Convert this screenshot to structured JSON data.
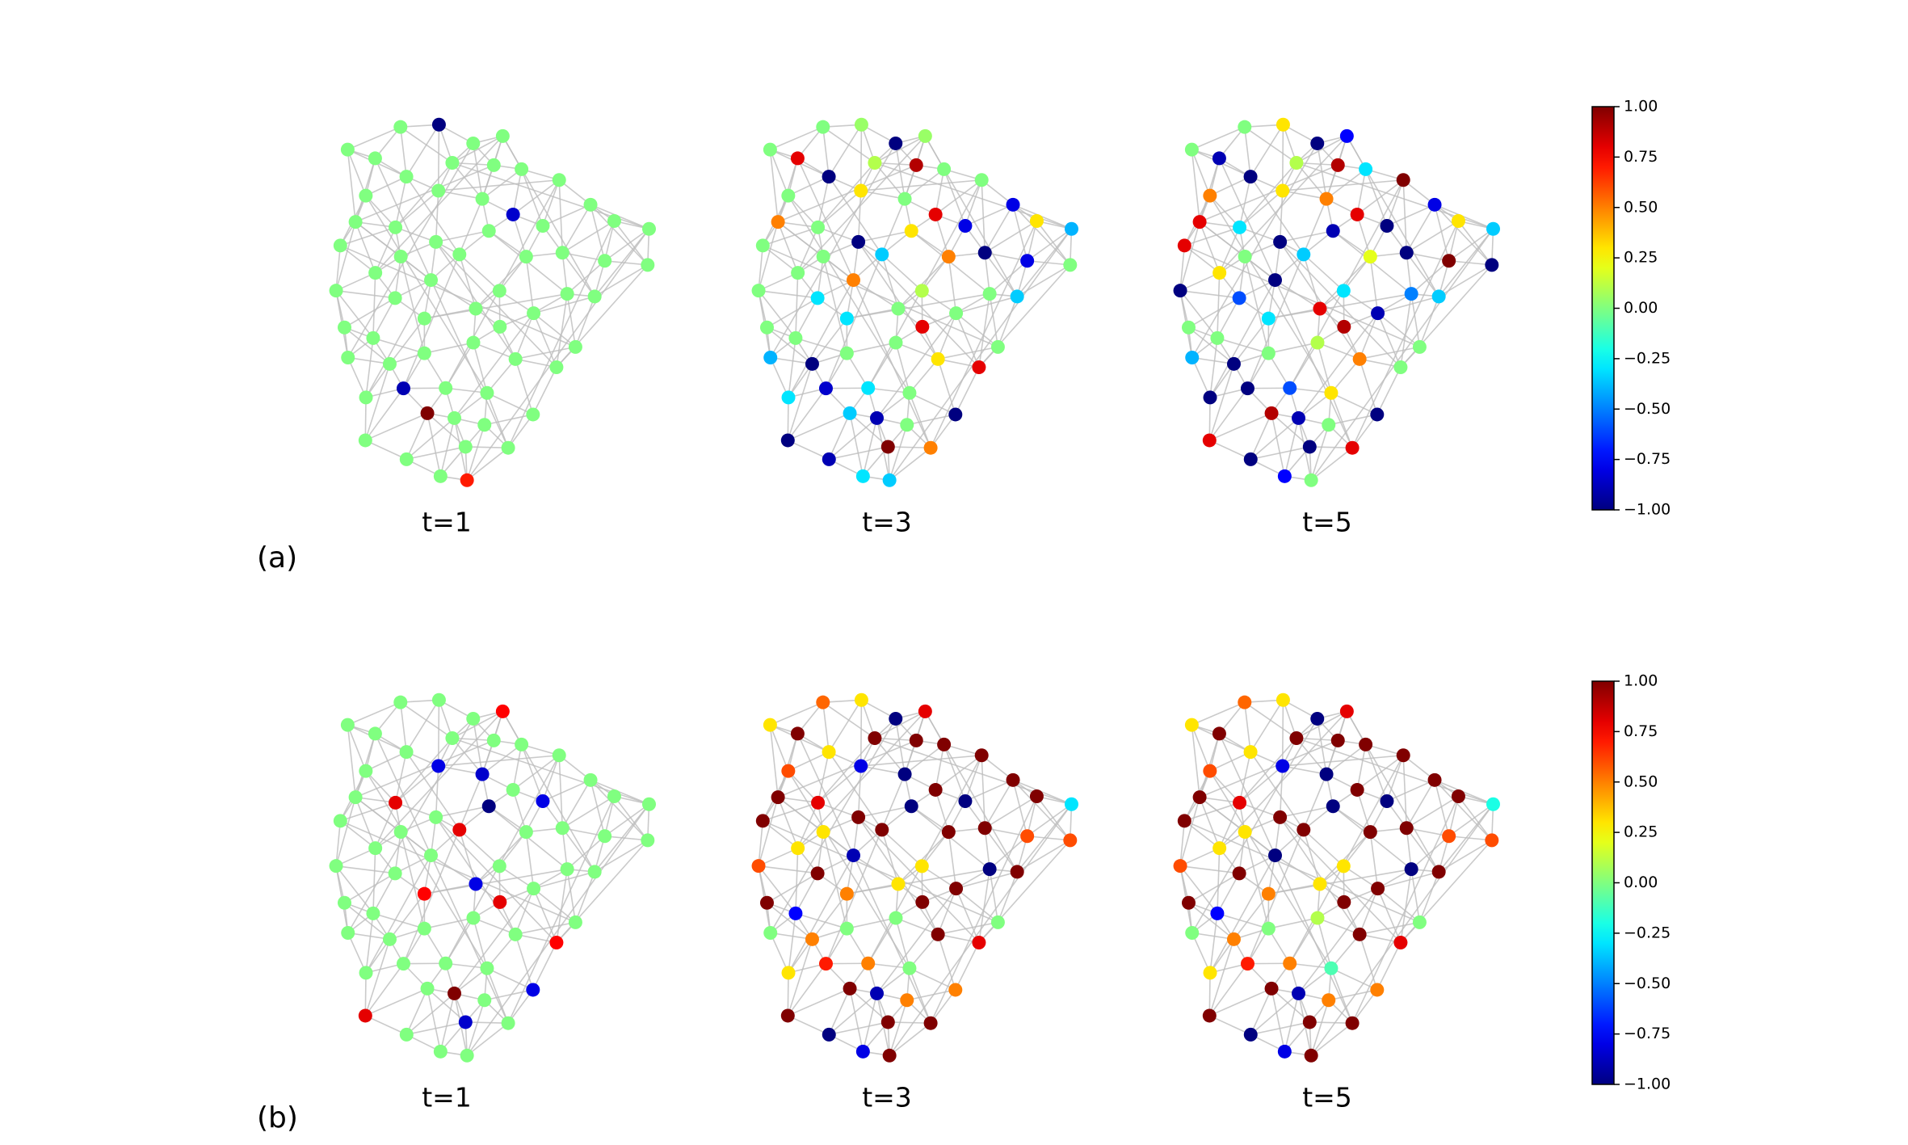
{
  "chart_data": {
    "type": "network",
    "colormap": "jet",
    "clim": [
      -1,
      1
    ],
    "colorbar_ticks": [
      {
        "value": 1,
        "label": "1.00"
      },
      {
        "value": 0.75,
        "label": "0.75"
      },
      {
        "value": 0.5,
        "label": "0.50"
      },
      {
        "value": 0.25,
        "label": "0.25"
      },
      {
        "value": 0,
        "label": "0.00"
      },
      {
        "value": -0.25,
        "label": "−0.25"
      },
      {
        "value": -0.5,
        "label": "−0.50"
      },
      {
        "value": -0.75,
        "label": "−0.75"
      },
      {
        "value": -1,
        "label": "−1.00"
      }
    ],
    "rows": [
      {
        "label": "(a)",
        "panels": [
          {
            "title": "t=1",
            "values": [
              0,
              0,
              0,
              0,
              0.7,
              0,
              0,
              0,
              0,
              -1,
              0,
              0,
              0,
              0,
              0,
              0,
              0,
              0,
              0,
              0,
              -0.85,
              0,
              0,
              0,
              1,
              0,
              0,
              0,
              0,
              0,
              0,
              0,
              0,
              0,
              0,
              0,
              0,
              0,
              0,
              0,
              -0.9,
              0,
              0,
              0,
              0,
              0,
              0,
              0,
              0,
              0,
              0,
              0,
              0,
              0,
              0,
              0,
              0,
              0,
              0,
              0,
              0,
              0,
              0,
              0
            ]
          },
          {
            "title": "t=3",
            "values": [
              0.3,
              0.8,
              -1,
              0,
              -0.35,
              0,
              0.5,
              0,
              -1,
              0.05,
              0.3,
              -1,
              0.8,
              0,
              -0.3,
              0,
              0.5,
              -1,
              -0.9,
              0,
              0.8,
              1,
              -0.8,
              0,
              -0.35,
              0,
              -0.3,
              -0.9,
              0.1,
              0,
              -0.35,
              0,
              0.5,
              0.3,
              -1,
              -0.8,
              0,
              0.8,
              -0.3,
              0,
              -0.85,
              0,
              -0.4,
              -0.3,
              0,
              -1,
              0.1,
              0,
              0.05,
              -0.35,
              0,
              0,
              -0.8,
              0.9,
              0,
              -0.4,
              0,
              0.3,
              -0.3,
              0,
              0,
              -1,
              0.5,
              0
            ]
          },
          {
            "title": "t=5",
            "values": [
              0.5,
              0.9,
              -1,
              -0.5,
              0,
              0.8,
              -1,
              1,
              0.8,
              0.3,
              -0.9,
              -1,
              0,
              0.3,
              -0.6,
              0.5,
              0.8,
              -1,
              -0.9,
              0.3,
              0.8,
              -1,
              1,
              0,
              0.9,
              -0.3,
              -1,
              -1,
              0.1,
              0,
              -0.35,
              -1,
              0.2,
              0.3,
              -1,
              -0.8,
              0.8,
              -0.9,
              -0.3,
              0.1,
              -1,
              -0.9,
              -0.35,
              -0.6,
              0,
              -1,
              -0.3,
              0,
              -0.75,
              -0.35,
              0,
              -1,
              -1,
              0.9,
              0,
              -0.4,
              0.5,
              0.3,
              -0.75,
              0,
              -0.3,
              -1,
              0.8,
              0
            ]
          }
        ]
      },
      {
        "label": "(b)",
        "panels": [
          {
            "title": "t=1",
            "values": [
              0,
              0.8,
              -0.8,
              0,
              0,
              -0.8,
              0,
              0,
              0.8,
              0,
              -1,
              0,
              0.75,
              0,
              0,
              -0.85,
              0,
              0,
              1,
              0,
              0,
              -0.85,
              0,
              0,
              0,
              0.8,
              0,
              0,
              0,
              0,
              0.8,
              0,
              0,
              -0.8,
              0,
              0,
              0,
              0,
              0.75,
              0,
              0,
              0,
              0,
              0,
              0,
              0,
              0,
              0,
              0.75,
              0,
              0,
              0,
              -0.8,
              0,
              0,
              0,
              0,
              0,
              0,
              0,
              0,
              0,
              0,
              0
            ]
          },
          {
            "title": "t=3",
            "values": [
              1,
              1,
              0.5,
              -1,
              1,
              0.3,
              -0.9,
              1,
              1,
              0.3,
              -1,
              1,
              0.8,
              0,
              0.5,
              -1,
              1,
              1,
              -0.9,
              0.3,
              1,
              1,
              0.6,
              -0.75,
              1,
              0.8,
              0.3,
              -1,
              1,
              0,
              1,
              0.6,
              1,
              -0.8,
              0.3,
              1,
              1,
              1,
              0.5,
              0,
              0.7,
              1,
              -0.3,
              1,
              0.5,
              -1,
              0.3,
              1,
              0.8,
              1,
              0.55,
              0.6,
              -1,
              1,
              0.3,
              0,
              0.6,
              1,
              -0.8,
              0,
              1,
              0.5,
              1,
              0.3
            ]
          },
          {
            "title": "t=5",
            "values": [
              1,
              1,
              0.5,
              -1,
              1,
              0.3,
              -1,
              1,
              1,
              0.3,
              -1,
              1,
              0.8,
              -0.1,
              0.5,
              -1,
              1,
              1,
              -0.9,
              0.3,
              1,
              1,
              0.6,
              -0.75,
              1,
              0.8,
              0.3,
              -1,
              1,
              0,
              1,
              0.6,
              1,
              -0.8,
              0.3,
              1,
              1,
              1,
              0.5,
              0.1,
              0.7,
              1,
              -0.2,
              1,
              0.5,
              -1,
              0.3,
              1,
              0.8,
              1,
              0.55,
              0.6,
              -1,
              1,
              0.3,
              0,
              0.6,
              1,
              -0.8,
              0,
              1,
              0.5,
              1,
              0.3
            ]
          }
        ]
      }
    ]
  }
}
